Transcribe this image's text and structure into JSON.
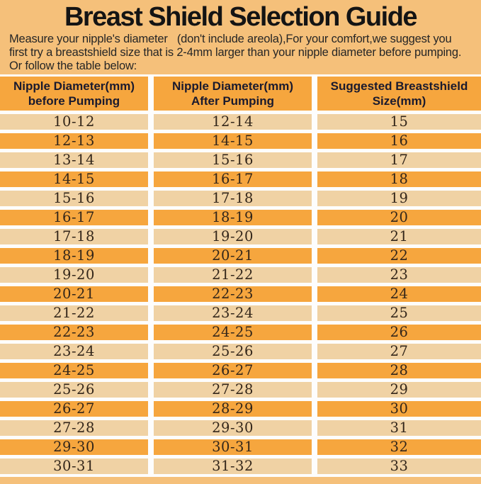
{
  "page": {
    "background_color": "#f5c07a",
    "row_dark_color": "#f6a63e",
    "row_light_color": "#f0d2a4",
    "separator_color": "#fdfdfd"
  },
  "title": "Breast Shield Selection Guide",
  "intro": {
    "line1": "Measure your nipple's diameter   (don't include areola),For your comfort,we suggest you",
    "line2": "first try a breastshield size that is 2-4mm larger than your nipple diameter before pumping.",
    "line3": "Or follow the table below:"
  },
  "table": {
    "headers": [
      {
        "line1": "Nipple Diameter(mm)",
        "line2": "before Pumping"
      },
      {
        "line1": "Nipple Diameter(mm)",
        "line2": "After Pumping"
      },
      {
        "line1": "Suggested Breastshield",
        "line2": "Size(mm)"
      }
    ],
    "rows": [
      {
        "before": "10-12",
        "after": "12-14",
        "size": "15"
      },
      {
        "before": "12-13",
        "after": "14-15",
        "size": "16"
      },
      {
        "before": "13-14",
        "after": "15-16",
        "size": "17"
      },
      {
        "before": "14-15",
        "after": "16-17",
        "size": "18"
      },
      {
        "before": "15-16",
        "after": "17-18",
        "size": "19"
      },
      {
        "before": "16-17",
        "after": "18-19",
        "size": "20"
      },
      {
        "before": "17-18",
        "after": "19-20",
        "size": "21"
      },
      {
        "before": "18-19",
        "after": "20-21",
        "size": "22"
      },
      {
        "before": "19-20",
        "after": "21-22",
        "size": "23"
      },
      {
        "before": "20-21",
        "after": "22-23",
        "size": "24"
      },
      {
        "before": "21-22",
        "after": "23-24",
        "size": "25"
      },
      {
        "before": "22-23",
        "after": "24-25",
        "size": "26"
      },
      {
        "before": "23-24",
        "after": "25-26",
        "size": "27"
      },
      {
        "before": "24-25",
        "after": "26-27",
        "size": "28"
      },
      {
        "before": "25-26",
        "after": "27-28",
        "size": "29"
      },
      {
        "before": "26-27",
        "after": "28-29",
        "size": "30"
      },
      {
        "before": "27-28",
        "after": "29-30",
        "size": "31"
      },
      {
        "before": "29-30",
        "after": "30-31",
        "size": "32"
      },
      {
        "before": "30-31",
        "after": "31-32",
        "size": "33"
      }
    ]
  }
}
